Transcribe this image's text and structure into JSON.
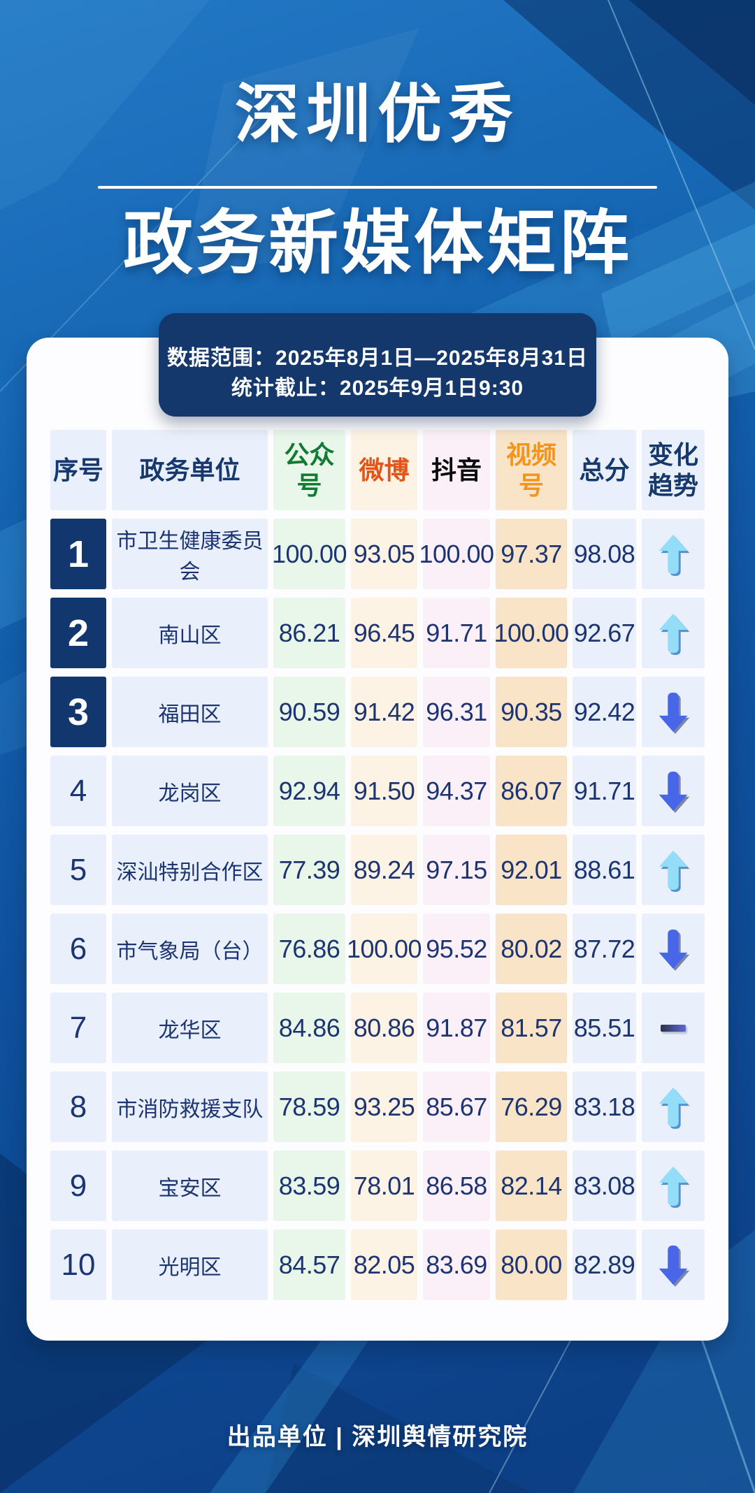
{
  "title": {
    "line1": "深圳优秀",
    "line2": "政务新媒体矩阵"
  },
  "banner": {
    "line1": "数据范围：2025年8月1日—2025年8月31日",
    "line2": "统计截止：2025年9月1日9:30"
  },
  "table": {
    "columns": [
      {
        "key": "rank",
        "label": "序号",
        "text_color": "#16386c",
        "bg": "#e9f0fb"
      },
      {
        "key": "unit",
        "label": "政务单位",
        "text_color": "#16386c",
        "bg": "#e9f0fb"
      },
      {
        "key": "gzh",
        "label": "公众号",
        "text_color": "#117b33",
        "bg": "#e8f7ea"
      },
      {
        "key": "weibo",
        "label": "微博",
        "text_color": "#e25418",
        "bg": "#fdf3e4"
      },
      {
        "key": "douyin",
        "label": "抖音",
        "text_color": "#0b0b0b",
        "bg": "#fcf0f8"
      },
      {
        "key": "sph",
        "label": "视频号",
        "text_color": "#f3941d",
        "bg": "#f9e4c8"
      },
      {
        "key": "total",
        "label": "总分",
        "text_color": "#16386c",
        "bg": "#e9f0fb"
      },
      {
        "key": "trend",
        "label": "变化趋势",
        "text_color": "#16386c",
        "bg": "#e9f0fb"
      }
    ],
    "rows": [
      {
        "rank": "1",
        "unit": "市卫生健康委员会",
        "gzh": "100.00",
        "weibo": "93.05",
        "douyin": "100.00",
        "sph": "97.37",
        "total": "98.08",
        "trend": "up",
        "top3": true
      },
      {
        "rank": "2",
        "unit": "南山区",
        "gzh": "86.21",
        "weibo": "96.45",
        "douyin": "91.71",
        "sph": "100.00",
        "total": "92.67",
        "trend": "up",
        "top3": true
      },
      {
        "rank": "3",
        "unit": "福田区",
        "gzh": "90.59",
        "weibo": "91.42",
        "douyin": "96.31",
        "sph": "90.35",
        "total": "92.42",
        "trend": "down",
        "top3": true
      },
      {
        "rank": "4",
        "unit": "龙岗区",
        "gzh": "92.94",
        "weibo": "91.50",
        "douyin": "94.37",
        "sph": "86.07",
        "total": "91.71",
        "trend": "down",
        "top3": false
      },
      {
        "rank": "5",
        "unit": "深汕特别合作区",
        "gzh": "77.39",
        "weibo": "89.24",
        "douyin": "97.15",
        "sph": "92.01",
        "total": "88.61",
        "trend": "up",
        "top3": false
      },
      {
        "rank": "6",
        "unit": "市气象局（台）",
        "gzh": "76.86",
        "weibo": "100.00",
        "douyin": "95.52",
        "sph": "80.02",
        "total": "87.72",
        "trend": "down",
        "top3": false
      },
      {
        "rank": "7",
        "unit": "龙华区",
        "gzh": "84.86",
        "weibo": "80.86",
        "douyin": "91.87",
        "sph": "81.57",
        "total": "85.51",
        "trend": "flat",
        "top3": false
      },
      {
        "rank": "8",
        "unit": "市消防救援支队",
        "gzh": "78.59",
        "weibo": "93.25",
        "douyin": "85.67",
        "sph": "76.29",
        "total": "83.18",
        "trend": "up",
        "top3": false
      },
      {
        "rank": "9",
        "unit": "宝安区",
        "gzh": "83.59",
        "weibo": "78.01",
        "douyin": "86.58",
        "sph": "82.14",
        "total": "83.08",
        "trend": "up",
        "top3": false
      },
      {
        "rank": "10",
        "unit": "光明区",
        "gzh": "84.57",
        "weibo": "82.05",
        "douyin": "83.69",
        "sph": "80.00",
        "total": "82.89",
        "trend": "down",
        "top3": false
      }
    ]
  },
  "footer": {
    "text": "出品单位 | 深圳舆情研究院"
  },
  "colors": {
    "background_blue": "#1464b1",
    "banner_navy": "#14386c",
    "rank_box_bg": "#12376e",
    "rank_box_text": "#ffffff",
    "value_text": "#1d3472",
    "trend_up": "#93ddf8",
    "trend_down": "#4766e8",
    "trend_flat_gradient": [
      "#2e3147",
      "#5e68d8"
    ]
  },
  "icons": {
    "up": "trend-up-icon",
    "down": "trend-down-icon",
    "flat": "trend-flat-icon"
  },
  "chart_data": {
    "type": "table",
    "title": "深圳优秀政务新媒体矩阵",
    "date_range": "2025年8月1日—2025年8月31日",
    "stats_cutoff": "2025年9月1日9:30",
    "columns": [
      "序号",
      "政务单位",
      "公众号",
      "微博",
      "抖音",
      "视频号",
      "总分",
      "变化趋势"
    ],
    "rows": [
      [
        1,
        "市卫生健康委员会",
        100.0,
        93.05,
        100.0,
        97.37,
        98.08,
        "up"
      ],
      [
        2,
        "南山区",
        86.21,
        96.45,
        91.71,
        100.0,
        92.67,
        "up"
      ],
      [
        3,
        "福田区",
        90.59,
        91.42,
        96.31,
        90.35,
        92.42,
        "down"
      ],
      [
        4,
        "龙岗区",
        92.94,
        91.5,
        94.37,
        86.07,
        91.71,
        "down"
      ],
      [
        5,
        "深汕特别合作区",
        77.39,
        89.24,
        97.15,
        92.01,
        88.61,
        "up"
      ],
      [
        6,
        "市气象局（台）",
        76.86,
        100.0,
        95.52,
        80.02,
        87.72,
        "down"
      ],
      [
        7,
        "龙华区",
        84.86,
        80.86,
        91.87,
        81.57,
        85.51,
        "flat"
      ],
      [
        8,
        "市消防救援支队",
        78.59,
        93.25,
        85.67,
        76.29,
        83.18,
        "up"
      ],
      [
        9,
        "宝安区",
        83.59,
        78.01,
        86.58,
        82.14,
        83.08,
        "up"
      ],
      [
        10,
        "光明区",
        84.57,
        82.05,
        83.69,
        80.0,
        82.89,
        "down"
      ]
    ],
    "legend_position": "none",
    "grid": false
  }
}
